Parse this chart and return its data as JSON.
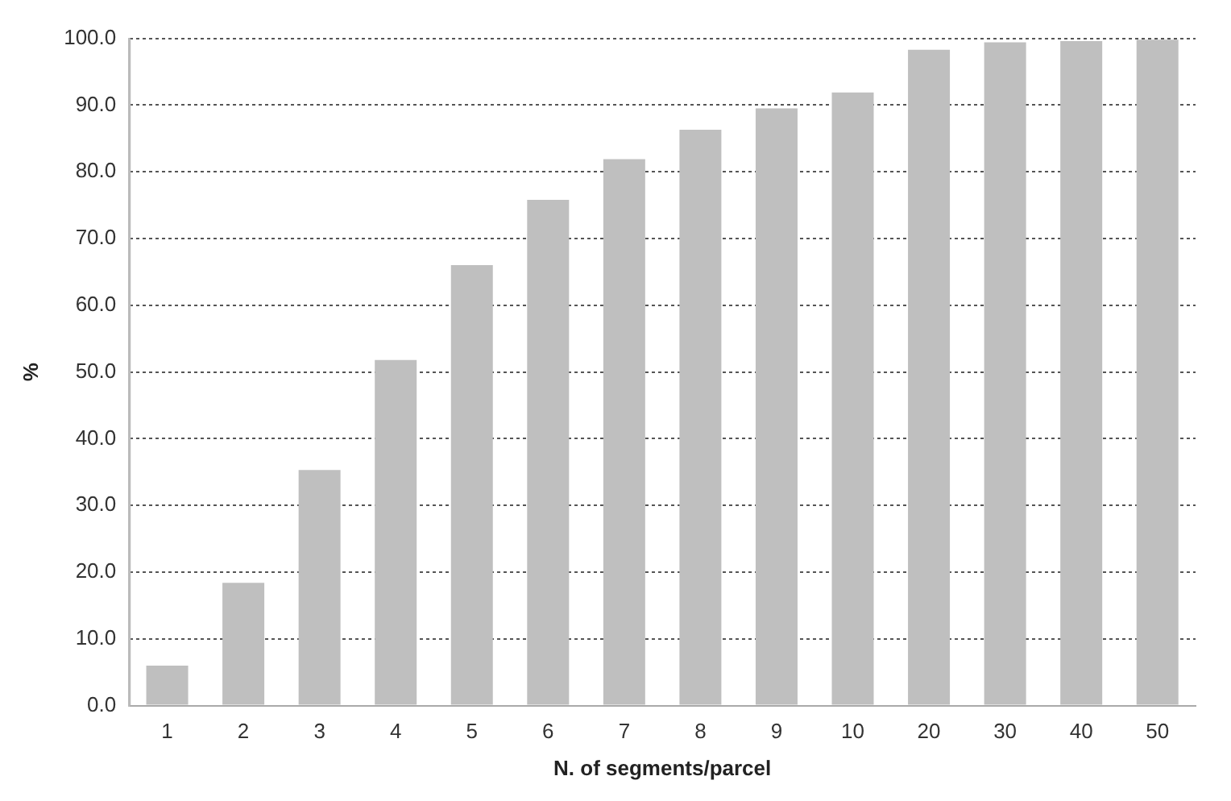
{
  "chart_data": {
    "type": "bar",
    "xlabel": "N. of segments/parcel",
    "ylabel": "%",
    "categories": [
      "1",
      "2",
      "3",
      "4",
      "5",
      "6",
      "7",
      "8",
      "9",
      "10",
      "20",
      "30",
      "40",
      "50"
    ],
    "values": [
      6.0,
      18.4,
      35.3,
      51.8,
      66.0,
      75.8,
      81.9,
      86.3,
      89.5,
      91.9,
      98.3,
      99.4,
      99.6,
      99.8
    ],
    "color": "#bfbfbf",
    "ylim": [
      0,
      100
    ],
    "yticks": [
      {
        "value": 0,
        "label": "0.0"
      },
      {
        "value": 10,
        "label": "10.0"
      },
      {
        "value": 20,
        "label": "20.0"
      },
      {
        "value": 30,
        "label": "30.0"
      },
      {
        "value": 40,
        "label": "40.0"
      },
      {
        "value": 50,
        "label": "50.0"
      },
      {
        "value": 60,
        "label": "60.0"
      },
      {
        "value": 70,
        "label": "70.0"
      },
      {
        "value": 80,
        "label": "80.0"
      },
      {
        "value": 90,
        "label": "90.0"
      },
      {
        "value": 100,
        "label": "100.0"
      }
    ],
    "grid": "y",
    "legend": false
  }
}
